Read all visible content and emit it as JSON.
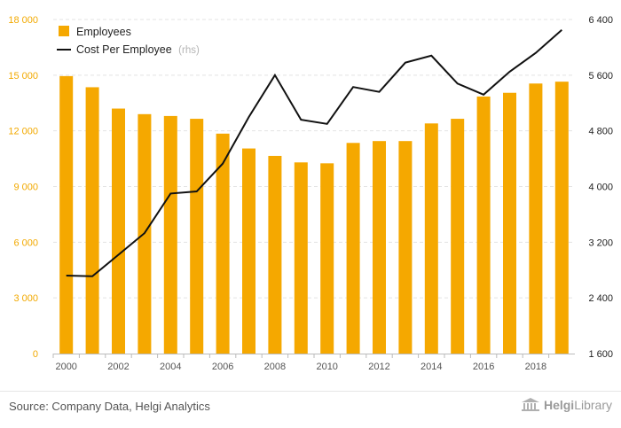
{
  "chart_data": {
    "type": "bar+line",
    "title": "",
    "x": [
      2000,
      2001,
      2002,
      2003,
      2004,
      2005,
      2006,
      2007,
      2008,
      2009,
      2010,
      2011,
      2012,
      2013,
      2014,
      2015,
      2016,
      2017,
      2018,
      2019
    ],
    "x_tick_labels": [
      "2000",
      "2002",
      "2004",
      "2006",
      "2008",
      "2010",
      "2012",
      "2014",
      "2016",
      "2018"
    ],
    "series": [
      {
        "name": "Employees",
        "type": "bar",
        "axis": "left",
        "color": "#f5a800",
        "values": [
          14950,
          14350,
          13200,
          12900,
          12800,
          12650,
          11850,
          11050,
          10650,
          10300,
          10250,
          11350,
          11450,
          11450,
          12400,
          12650,
          13850,
          14050,
          14550,
          14650
        ]
      },
      {
        "name": "Cost Per Employee",
        "note": "(rhs)",
        "type": "line",
        "axis": "right",
        "color": "#111111",
        "values": [
          2720,
          2710,
          3020,
          3330,
          3900,
          3930,
          4330,
          5000,
          5600,
          4960,
          4900,
          5430,
          5360,
          5780,
          5880,
          5480,
          5320,
          5650,
          5920,
          6250
        ]
      }
    ],
    "y_left": {
      "min": 0,
      "max": 18000,
      "ticks": [
        0,
        3000,
        6000,
        9000,
        12000,
        15000,
        18000
      ],
      "tick_labels": [
        "0",
        "3 000",
        "6 000",
        "9 000",
        "12 000",
        "15 000",
        "18 000"
      ],
      "color": "#f2a900"
    },
    "y_right": {
      "min": 1600,
      "max": 6400,
      "ticks": [
        1600,
        2400,
        3200,
        4000,
        4800,
        5600,
        6400
      ],
      "tick_labels": [
        "1 600",
        "2 400",
        "3 200",
        "4 000",
        "4 800",
        "5 600",
        "6 400"
      ],
      "color": "#222222"
    },
    "xlabel": "",
    "ylabel": "",
    "legend_position": "top-left",
    "grid": true
  },
  "footer": {
    "source": "Source: Company Data, Helgi Analytics",
    "logo_part1": "Helgi",
    "logo_part2": "Library"
  }
}
